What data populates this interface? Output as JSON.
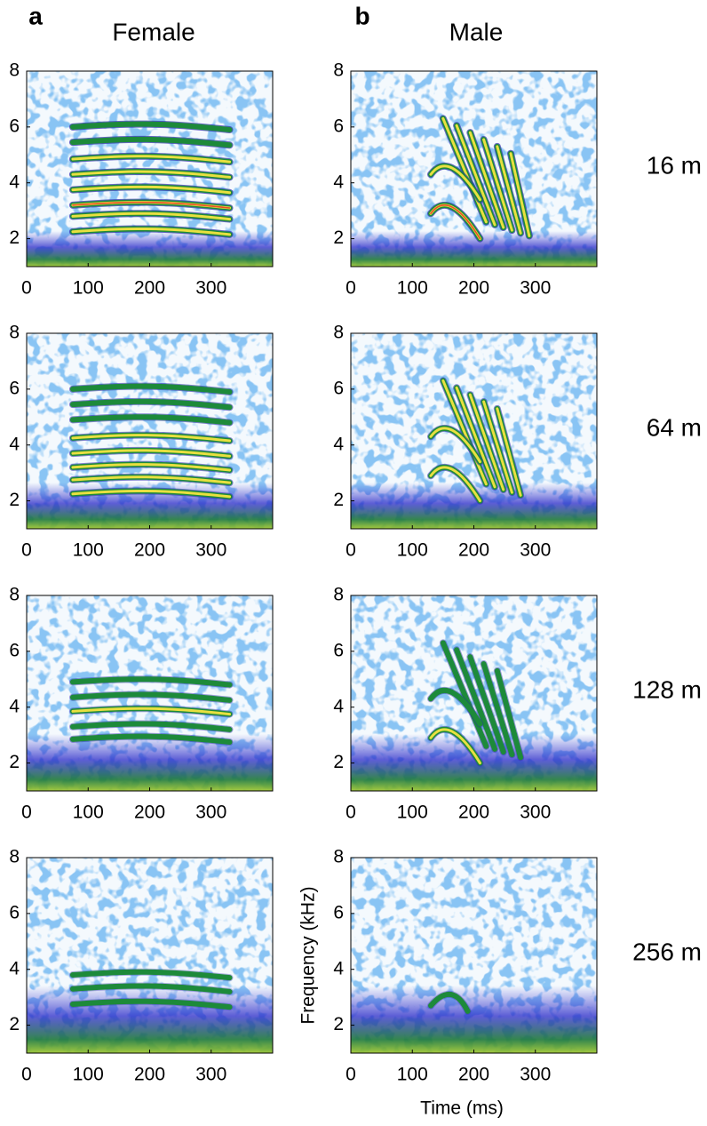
{
  "figure": {
    "panel_labels": [
      "a",
      "b"
    ],
    "column_titles": [
      "Female",
      "Male"
    ],
    "distances": [
      "16 m",
      "64 m",
      "128 m",
      "256 m"
    ],
    "xlabel": "Time (ms)",
    "ylabel": "Frequency (kHz)",
    "xlim": [
      0,
      400
    ],
    "ylim": [
      1,
      8
    ],
    "xticks": [
      0,
      100,
      200,
      300
    ],
    "yticks": [
      2,
      4,
      6,
      8
    ]
  }
}
